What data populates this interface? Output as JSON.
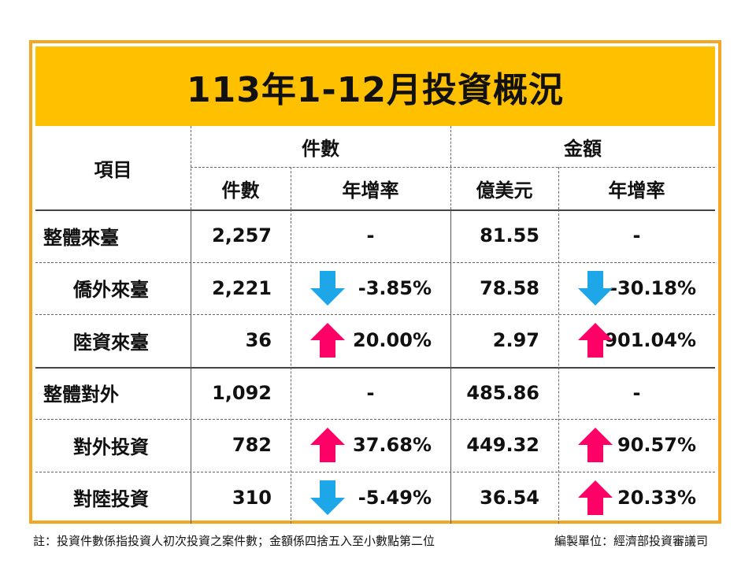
{
  "title": "113年1-12月投資概況",
  "header": {
    "item": "項目",
    "group_count": "件數",
    "group_amount": "金額",
    "sub_count": "件數",
    "sub_count_growth": "年增率",
    "sub_amount": "億美元",
    "sub_amount_growth": "年增率"
  },
  "rows": [
    {
      "label": "整體來臺",
      "count": "2,257",
      "count_growth": "-",
      "count_trend": "none",
      "amount": "81.55",
      "amount_growth": "-",
      "amount_trend": "none"
    },
    {
      "label": "僑外來臺",
      "count": "2,221",
      "count_growth": "-3.85%",
      "count_trend": "down",
      "amount": "78.58",
      "amount_growth": "-30.18%",
      "amount_trend": "down"
    },
    {
      "label": "陸資來臺",
      "count": "36",
      "count_growth": "20.00%",
      "count_trend": "up",
      "amount": "2.97",
      "amount_growth": "901.04%",
      "amount_trend": "up"
    },
    {
      "label": "整體對外",
      "count": "1,092",
      "count_growth": "-",
      "count_trend": "none",
      "amount": "485.86",
      "amount_growth": "-",
      "amount_trend": "none"
    },
    {
      "label": "對外投資",
      "count": "782",
      "count_growth": "37.68%",
      "count_trend": "up",
      "amount": "449.32",
      "amount_growth": "90.57%",
      "amount_trend": "up"
    },
    {
      "label": "對陸投資",
      "count": "310",
      "count_growth": "-5.49%",
      "count_trend": "down",
      "amount": "36.54",
      "amount_growth": "20.33%",
      "amount_trend": "up"
    }
  ],
  "colors": {
    "up_arrow": "#ff0066",
    "down_arrow": "#1ea7e8",
    "title_band": "#ffc000",
    "frame_border": "#f5a623"
  },
  "icons": {
    "up": "up-arrow-icon",
    "down": "down-arrow-icon"
  },
  "footer": {
    "note": "註：投資件數係指投資人初次投資之案件數；金額係四捨五入至小數點第二位",
    "unit": "編製單位：經濟部投資審議司"
  }
}
